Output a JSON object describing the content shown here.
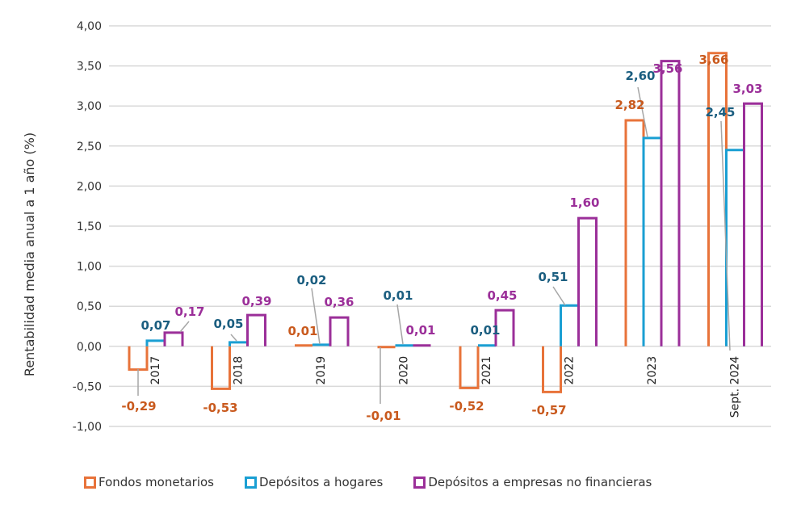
{
  "chart_data": {
    "type": "bar",
    "title": "",
    "xlabel": "",
    "ylabel": "Rentabilidad media anual a 1 año (%)",
    "ylim": [
      -1.0,
      4.0
    ],
    "yticks": [
      4.0,
      3.5,
      3.0,
      2.5,
      2.0,
      1.5,
      1.0,
      0.5,
      0.0,
      -0.5,
      -1.0
    ],
    "ytick_labels": [
      "4,00",
      "3,50",
      "3,00",
      "2,50",
      "2,00",
      "1,50",
      "1,00",
      "0,50",
      "0,00",
      "-0,50",
      "-1,00"
    ],
    "grid": true,
    "legend_position": "bottom",
    "categories": [
      "2017",
      "2018",
      "2019",
      "2020",
      "2021",
      "2022",
      "2023",
      "Sept. 2024"
    ],
    "series": [
      {
        "name": "Fondos monetarios",
        "color": "#E8733A",
        "label_color": "#C95A1E",
        "values": [
          -0.29,
          -0.53,
          0.01,
          -0.01,
          -0.52,
          -0.57,
          2.82,
          3.66
        ],
        "labels": [
          "-0,29",
          "-0,53",
          "0,01",
          "-0,01",
          "-0,52",
          "-0,57",
          "2,82",
          "3,66"
        ]
      },
      {
        "name": "Depósitos a hogares",
        "color": "#1A9FD3",
        "label_color": "#1B5E80",
        "values": [
          0.07,
          0.05,
          0.02,
          0.01,
          0.01,
          0.51,
          2.6,
          2.45
        ],
        "labels": [
          "0,07",
          "0,05",
          "0,02",
          "0,01",
          "0,01",
          "0,51",
          "2,60",
          "2,45"
        ]
      },
      {
        "name": "Depósitos a empresas no financieras",
        "color": "#9B2F99",
        "label_color": "#9B2F99",
        "values": [
          0.17,
          0.39,
          0.36,
          0.01,
          0.45,
          1.6,
          3.56,
          3.03
        ],
        "labels": [
          "0,17",
          "0,39",
          "0,36",
          "0,01",
          "0,45",
          "1,60",
          "3,56",
          "3,03"
        ]
      }
    ]
  }
}
